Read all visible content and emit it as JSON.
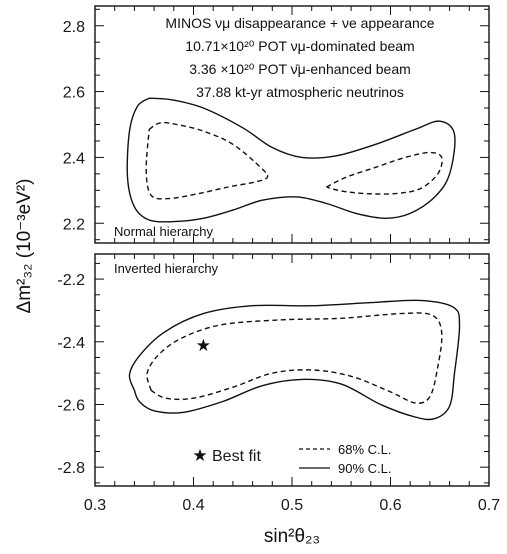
{
  "chart_data": {
    "type": "contour",
    "xlabel": "sin²θ₂₃",
    "ylabel": "Δm²₃₂ (10⁻³eV²)",
    "xlim": [
      0.3,
      0.7
    ],
    "x_ticks": [
      "0.3",
      "0.4",
      "0.5",
      "0.6",
      "0.7"
    ],
    "annotation_lines": [
      "MINOS νμ disappearance + νe appearance",
      "10.71×10²⁰ POT νμ-dominated beam",
      "3.36 ×10²⁰ POT ν̄μ-enhanced beam",
      "37.88 kt-yr atmospheric neutrinos"
    ],
    "legend": {
      "placement": "bottom-right",
      "best_fit_label": "Best fit",
      "cl68_label": "68% C.L.",
      "cl90_label": "90% C.L."
    },
    "panels": [
      {
        "name": "normal",
        "label": "Normal hierarchy",
        "ylim": [
          2.14,
          2.86
        ],
        "y_ticks": [
          "2.2",
          "2.4",
          "2.6",
          "2.8"
        ],
        "y_tick_values": [
          2.2,
          2.4,
          2.6,
          2.8
        ],
        "contours": [
          {
            "level": "90% C.L.",
            "style": "solid",
            "points": [
              [
                0.355,
                2.58
              ],
              [
                0.378,
                2.575
              ],
              [
                0.41,
                2.55
              ],
              [
                0.45,
                2.49
              ],
              [
                0.48,
                2.43
              ],
              [
                0.51,
                2.4
              ],
              [
                0.545,
                2.405
              ],
              [
                0.585,
                2.44
              ],
              [
                0.625,
                2.485
              ],
              [
                0.65,
                2.51
              ],
              [
                0.665,
                2.47
              ],
              [
                0.66,
                2.35
              ],
              [
                0.645,
                2.28
              ],
              [
                0.62,
                2.23
              ],
              [
                0.595,
                2.215
              ],
              [
                0.565,
                2.23
              ],
              [
                0.535,
                2.26
              ],
              [
                0.505,
                2.28
              ],
              [
                0.47,
                2.27
              ],
              [
                0.44,
                2.24
              ],
              [
                0.41,
                2.215
              ],
              [
                0.38,
                2.205
              ],
              [
                0.355,
                2.21
              ],
              [
                0.34,
                2.25
              ],
              [
                0.333,
                2.34
              ],
              [
                0.335,
                2.48
              ],
              [
                0.343,
                2.555
              ],
              [
                0.355,
                2.58
              ]
            ]
          },
          {
            "level": "68% C.L.",
            "style": "dashed",
            "points": [
              [
                0.355,
                2.485
              ],
              [
                0.366,
                2.505
              ],
              [
                0.383,
                2.5
              ],
              [
                0.41,
                2.48
              ],
              [
                0.44,
                2.44
              ],
              [
                0.468,
                2.37
              ],
              [
                0.475,
                2.34
              ],
              [
                0.462,
                2.325
              ],
              [
                0.435,
                2.31
              ],
              [
                0.405,
                2.29
              ],
              [
                0.375,
                2.275
              ],
              [
                0.357,
                2.285
              ],
              [
                0.352,
                2.36
              ],
              [
                0.355,
                2.485
              ]
            ]
          },
          {
            "level": "68% C.L.",
            "style": "dashed",
            "points": [
              [
                0.535,
                2.31
              ],
              [
                0.555,
                2.34
              ],
              [
                0.585,
                2.37
              ],
              [
                0.615,
                2.4
              ],
              [
                0.64,
                2.415
              ],
              [
                0.652,
                2.4
              ],
              [
                0.648,
                2.35
              ],
              [
                0.63,
                2.305
              ],
              [
                0.605,
                2.29
              ],
              [
                0.575,
                2.29
              ],
              [
                0.55,
                2.298
              ],
              [
                0.535,
                2.31
              ]
            ]
          }
        ]
      },
      {
        "name": "inverted",
        "label": "Inverted hierarchy",
        "ylim": [
          -2.86,
          -2.12
        ],
        "y_ticks": [
          "-2.2",
          "-2.4",
          "-2.6",
          "-2.8"
        ],
        "y_tick_values": [
          -2.2,
          -2.4,
          -2.6,
          -2.8
        ],
        "best_fit": {
          "x": 0.41,
          "y": -2.41
        },
        "contours": [
          {
            "level": "90% C.L.",
            "style": "solid",
            "points": [
              [
                0.34,
                -2.555
              ],
              [
                0.335,
                -2.505
              ],
              [
                0.345,
                -2.445
              ],
              [
                0.37,
                -2.37
              ],
              [
                0.41,
                -2.31
              ],
              [
                0.46,
                -2.285
              ],
              [
                0.52,
                -2.285
              ],
              [
                0.58,
                -2.275
              ],
              [
                0.63,
                -2.268
              ],
              [
                0.664,
                -2.29
              ],
              [
                0.67,
                -2.35
              ],
              [
                0.665,
                -2.5
              ],
              [
                0.66,
                -2.605
              ],
              [
                0.645,
                -2.645
              ],
              [
                0.625,
                -2.64
              ],
              [
                0.59,
                -2.6
              ],
              [
                0.55,
                -2.535
              ],
              [
                0.51,
                -2.52
              ],
              [
                0.47,
                -2.54
              ],
              [
                0.43,
                -2.59
              ],
              [
                0.39,
                -2.625
              ],
              [
                0.36,
                -2.62
              ],
              [
                0.345,
                -2.59
              ],
              [
                0.34,
                -2.555
              ]
            ]
          },
          {
            "level": "68% C.L.",
            "style": "dashed",
            "points": [
              [
                0.357,
                -2.555
              ],
              [
                0.353,
                -2.5
              ],
              [
                0.365,
                -2.44
              ],
              [
                0.39,
                -2.385
              ],
              [
                0.43,
                -2.345
              ],
              [
                0.49,
                -2.33
              ],
              [
                0.55,
                -2.325
              ],
              [
                0.61,
                -2.31
              ],
              [
                0.642,
                -2.315
              ],
              [
                0.652,
                -2.37
              ],
              [
                0.648,
                -2.48
              ],
              [
                0.64,
                -2.575
              ],
              [
                0.625,
                -2.595
              ],
              [
                0.6,
                -2.56
              ],
              [
                0.56,
                -2.51
              ],
              [
                0.52,
                -2.49
              ],
              [
                0.48,
                -2.5
              ],
              [
                0.44,
                -2.545
              ],
              [
                0.4,
                -2.58
              ],
              [
                0.372,
                -2.58
              ],
              [
                0.357,
                -2.555
              ]
            ]
          }
        ]
      }
    ]
  }
}
